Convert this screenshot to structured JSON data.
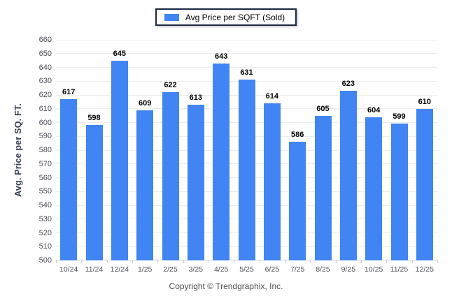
{
  "legend": {
    "label": "Avg Price per SQFT (Sold)",
    "swatch_color": "#4184f3"
  },
  "footer": {
    "text": "Copyright © Trendgraphix, Inc."
  },
  "colors": {
    "bar": "#4184f3",
    "gridline": "#ececec",
    "axis_line": "#cfcfcf",
    "axis_label": "#4b4f58",
    "value_label": "#000000",
    "y_axis_title": "#2f3d4f",
    "legend_border": "#182742"
  },
  "chart_data": {
    "type": "bar",
    "title": "",
    "series_name": "Avg Price per SQFT (Sold)",
    "categories": [
      "10/24",
      "11/24",
      "12/24",
      "1/25",
      "2/25",
      "3/25",
      "4/25",
      "5/25",
      "6/25",
      "7/25",
      "8/25",
      "9/25",
      "10/25",
      "11/25",
      "12/25"
    ],
    "values": [
      617,
      598,
      645,
      609,
      622,
      613,
      643,
      631,
      614,
      586,
      605,
      623,
      604,
      599,
      610
    ],
    "xlabel": "",
    "ylabel": "Avg. Price per SQ. FT.",
    "ylim": [
      500,
      660
    ],
    "ytick_step": 10,
    "grid": true,
    "legend_position": "top",
    "value_labels": true
  }
}
